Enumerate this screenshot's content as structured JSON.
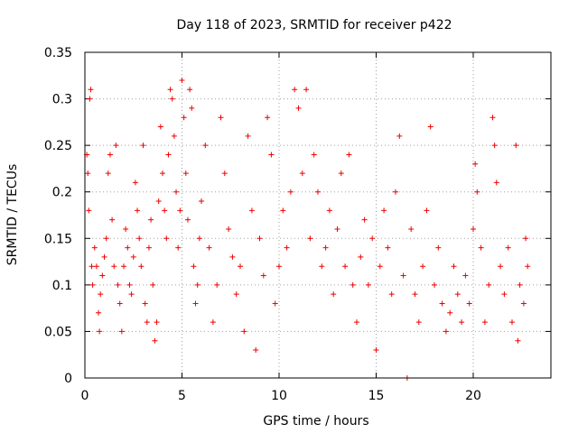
{
  "chart_data": {
    "type": "scatter",
    "title": "Day 118 of 2023, SRMTID for receiver p422",
    "xlabel": "GPS time / hours",
    "ylabel": "SRMTID / TECUs",
    "xlim": [
      0,
      24
    ],
    "ylim": [
      0,
      0.35
    ],
    "x_ticks": [
      0,
      5,
      10,
      15,
      20
    ],
    "x_tick_labels": [
      "0",
      "5",
      "10",
      "15",
      "20"
    ],
    "y_ticks": [
      0,
      0.05,
      0.1,
      0.15,
      0.2,
      0.25,
      0.3,
      0.35
    ],
    "y_tick_labels": [
      "0",
      "0.05",
      "0.1",
      "0.15",
      "0.2",
      "0.25",
      "0.3",
      "0.35"
    ],
    "grid": true,
    "marker": "+",
    "color": "#ee0000",
    "series": [
      {
        "name": "SRMTID",
        "points": [
          [
            0.1,
            0.24
          ],
          [
            0.15,
            0.22
          ],
          [
            0.2,
            0.18
          ],
          [
            0.25,
            0.3
          ],
          [
            0.3,
            0.31
          ],
          [
            0.35,
            0.12
          ],
          [
            0.4,
            0.1
          ],
          [
            0.5,
            0.14
          ],
          [
            0.6,
            0.12
          ],
          [
            0.7,
            0.07
          ],
          [
            0.75,
            0.05
          ],
          [
            0.8,
            0.09
          ],
          [
            0.9,
            0.11
          ],
          [
            1.0,
            0.13
          ],
          [
            1.1,
            0.15
          ],
          [
            1.2,
            0.22
          ],
          [
            1.3,
            0.24
          ],
          [
            1.4,
            0.17
          ],
          [
            1.5,
            0.12
          ],
          [
            1.6,
            0.25
          ],
          [
            1.7,
            0.1
          ],
          [
            1.8,
            0.08
          ],
          [
            1.9,
            0.05
          ],
          [
            2.0,
            0.12
          ],
          [
            2.1,
            0.16
          ],
          [
            2.2,
            0.14
          ],
          [
            2.3,
            0.1
          ],
          [
            2.4,
            0.09
          ],
          [
            2.5,
            0.13
          ],
          [
            2.6,
            0.21
          ],
          [
            2.7,
            0.18
          ],
          [
            2.8,
            0.15
          ],
          [
            2.9,
            0.12
          ],
          [
            3.0,
            0.25
          ],
          [
            3.1,
            0.08
          ],
          [
            3.2,
            0.06
          ],
          [
            3.3,
            0.14
          ],
          [
            3.4,
            0.17
          ],
          [
            3.5,
            0.1
          ],
          [
            3.6,
            0.04
          ],
          [
            3.7,
            0.06
          ],
          [
            3.8,
            0.19
          ],
          [
            3.9,
            0.27
          ],
          [
            4.0,
            0.22
          ],
          [
            4.1,
            0.18
          ],
          [
            4.2,
            0.15
          ],
          [
            4.3,
            0.24
          ],
          [
            4.4,
            0.31
          ],
          [
            4.5,
            0.3
          ],
          [
            4.6,
            0.26
          ],
          [
            4.7,
            0.2
          ],
          [
            4.8,
            0.14
          ],
          [
            4.9,
            0.18
          ],
          [
            5.0,
            0.32
          ],
          [
            5.1,
            0.28
          ],
          [
            5.2,
            0.22
          ],
          [
            5.3,
            0.17
          ],
          [
            5.4,
            0.31
          ],
          [
            5.5,
            0.29
          ],
          [
            5.6,
            0.12
          ],
          [
            5.7,
            0.08
          ],
          [
            5.8,
            0.1
          ],
          [
            5.9,
            0.15
          ],
          [
            6.0,
            0.19
          ],
          [
            6.2,
            0.25
          ],
          [
            6.4,
            0.14
          ],
          [
            6.6,
            0.06
          ],
          [
            6.8,
            0.1
          ],
          [
            7.0,
            0.28
          ],
          [
            7.2,
            0.22
          ],
          [
            7.4,
            0.16
          ],
          [
            7.6,
            0.13
          ],
          [
            7.8,
            0.09
          ],
          [
            8.0,
            0.12
          ],
          [
            8.2,
            0.05
          ],
          [
            8.4,
            0.26
          ],
          [
            8.6,
            0.18
          ],
          [
            8.8,
            0.03
          ],
          [
            9.0,
            0.15
          ],
          [
            9.2,
            0.11
          ],
          [
            9.4,
            0.28
          ],
          [
            9.6,
            0.24
          ],
          [
            9.8,
            0.08
          ],
          [
            10.0,
            0.12
          ],
          [
            10.2,
            0.18
          ],
          [
            10.4,
            0.14
          ],
          [
            10.6,
            0.2
          ],
          [
            10.8,
            0.31
          ],
          [
            11.0,
            0.29
          ],
          [
            11.2,
            0.22
          ],
          [
            11.4,
            0.31
          ],
          [
            11.6,
            0.15
          ],
          [
            11.8,
            0.24
          ],
          [
            12.0,
            0.2
          ],
          [
            12.2,
            0.12
          ],
          [
            12.4,
            0.14
          ],
          [
            12.6,
            0.18
          ],
          [
            12.8,
            0.09
          ],
          [
            13.0,
            0.16
          ],
          [
            13.2,
            0.22
          ],
          [
            13.4,
            0.12
          ],
          [
            13.6,
            0.24
          ],
          [
            13.8,
            0.1
          ],
          [
            14.0,
            0.06
          ],
          [
            14.2,
            0.13
          ],
          [
            14.4,
            0.17
          ],
          [
            14.6,
            0.1
          ],
          [
            14.8,
            0.15
          ],
          [
            15.0,
            0.03
          ],
          [
            15.2,
            0.12
          ],
          [
            15.4,
            0.18
          ],
          [
            15.6,
            0.14
          ],
          [
            15.8,
            0.09
          ],
          [
            16.0,
            0.2
          ],
          [
            16.2,
            0.26
          ],
          [
            16.4,
            0.11
          ],
          [
            16.6,
            0.0
          ],
          [
            16.8,
            0.16
          ],
          [
            17.0,
            0.09
          ],
          [
            17.2,
            0.06
          ],
          [
            17.4,
            0.12
          ],
          [
            17.6,
            0.18
          ],
          [
            17.8,
            0.27
          ],
          [
            18.0,
            0.1
          ],
          [
            18.2,
            0.14
          ],
          [
            18.4,
            0.08
          ],
          [
            18.6,
            0.05
          ],
          [
            18.8,
            0.07
          ],
          [
            19.0,
            0.12
          ],
          [
            19.2,
            0.09
          ],
          [
            19.4,
            0.06
          ],
          [
            19.6,
            0.11
          ],
          [
            19.8,
            0.08
          ],
          [
            20.0,
            0.16
          ],
          [
            20.1,
            0.23
          ],
          [
            20.2,
            0.2
          ],
          [
            20.4,
            0.14
          ],
          [
            20.6,
            0.06
          ],
          [
            20.8,
            0.1
          ],
          [
            21.0,
            0.28
          ],
          [
            21.1,
            0.25
          ],
          [
            21.2,
            0.21
          ],
          [
            21.4,
            0.12
          ],
          [
            21.6,
            0.09
          ],
          [
            21.8,
            0.14
          ],
          [
            22.0,
            0.06
          ],
          [
            22.2,
            0.25
          ],
          [
            22.3,
            0.04
          ],
          [
            22.4,
            0.1
          ],
          [
            22.6,
            0.08
          ],
          [
            22.7,
            0.15
          ],
          [
            22.8,
            0.12
          ]
        ]
      }
    ]
  }
}
